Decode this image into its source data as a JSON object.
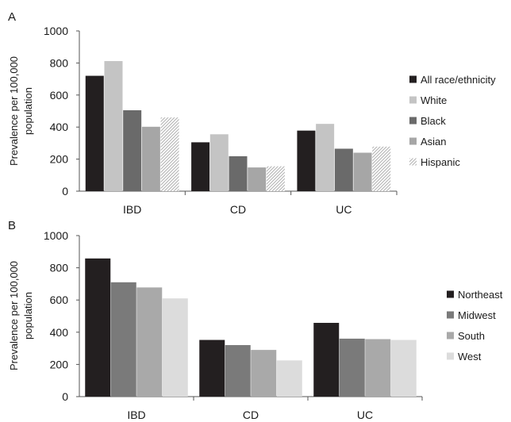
{
  "chart_data": [
    {
      "type": "bar",
      "panel_label": "A",
      "title": "",
      "xlabel": "",
      "ylabel": "Prevalence per 100,000 population",
      "ylabel_lines": [
        "Prevalence per 100,000",
        "population"
      ],
      "ylim": [
        0,
        1000
      ],
      "yticks": [
        0,
        200,
        400,
        600,
        800,
        1000
      ],
      "ytick_labels": [
        "0",
        "200",
        "400",
        "600",
        "800",
        "1000"
      ],
      "grid": false,
      "legend_position": "right",
      "categories": [
        "IBD",
        "CD",
        "UC"
      ],
      "series": [
        {
          "name": "All race/ethnicity",
          "color": "#231f20",
          "pattern": "solid",
          "values": [
            720,
            305,
            378
          ]
        },
        {
          "name": "White",
          "color": "#c4c4c4",
          "pattern": "solid",
          "values": [
            812,
            355,
            420
          ]
        },
        {
          "name": "Black",
          "color": "#6a6a6a",
          "pattern": "solid",
          "values": [
            505,
            218,
            265
          ]
        },
        {
          "name": "Asian",
          "color": "#a6a6a6",
          "pattern": "solid",
          "values": [
            402,
            148,
            240
          ]
        },
        {
          "name": "Hispanic",
          "color": "#bdbdbd",
          "pattern": "hatch",
          "values": [
            460,
            155,
            278
          ]
        }
      ]
    },
    {
      "type": "bar",
      "panel_label": "B",
      "title": "",
      "xlabel": "",
      "ylabel": "Prevalence per 100,000 population",
      "ylabel_lines": [
        "Prevalence per 100,000",
        "population"
      ],
      "ylim": [
        0,
        1000
      ],
      "yticks": [
        0,
        200,
        400,
        600,
        800,
        1000
      ],
      "ytick_labels": [
        "0",
        "200",
        "400",
        "600",
        "800",
        "1000"
      ],
      "grid": false,
      "legend_position": "right",
      "categories": [
        "IBD",
        "CD",
        "UC"
      ],
      "series": [
        {
          "name": "Northeast",
          "color": "#231f20",
          "pattern": "solid",
          "values": [
            858,
            352,
            458
          ]
        },
        {
          "name": "Midwest",
          "color": "#7a7a7a",
          "pattern": "solid",
          "values": [
            710,
            320,
            360
          ]
        },
        {
          "name": "South",
          "color": "#a9a9a9",
          "pattern": "solid",
          "values": [
            678,
            290,
            357
          ]
        },
        {
          "name": "West",
          "color": "#dcdcdc",
          "pattern": "solid",
          "values": [
            610,
            225,
            352
          ]
        }
      ]
    }
  ]
}
